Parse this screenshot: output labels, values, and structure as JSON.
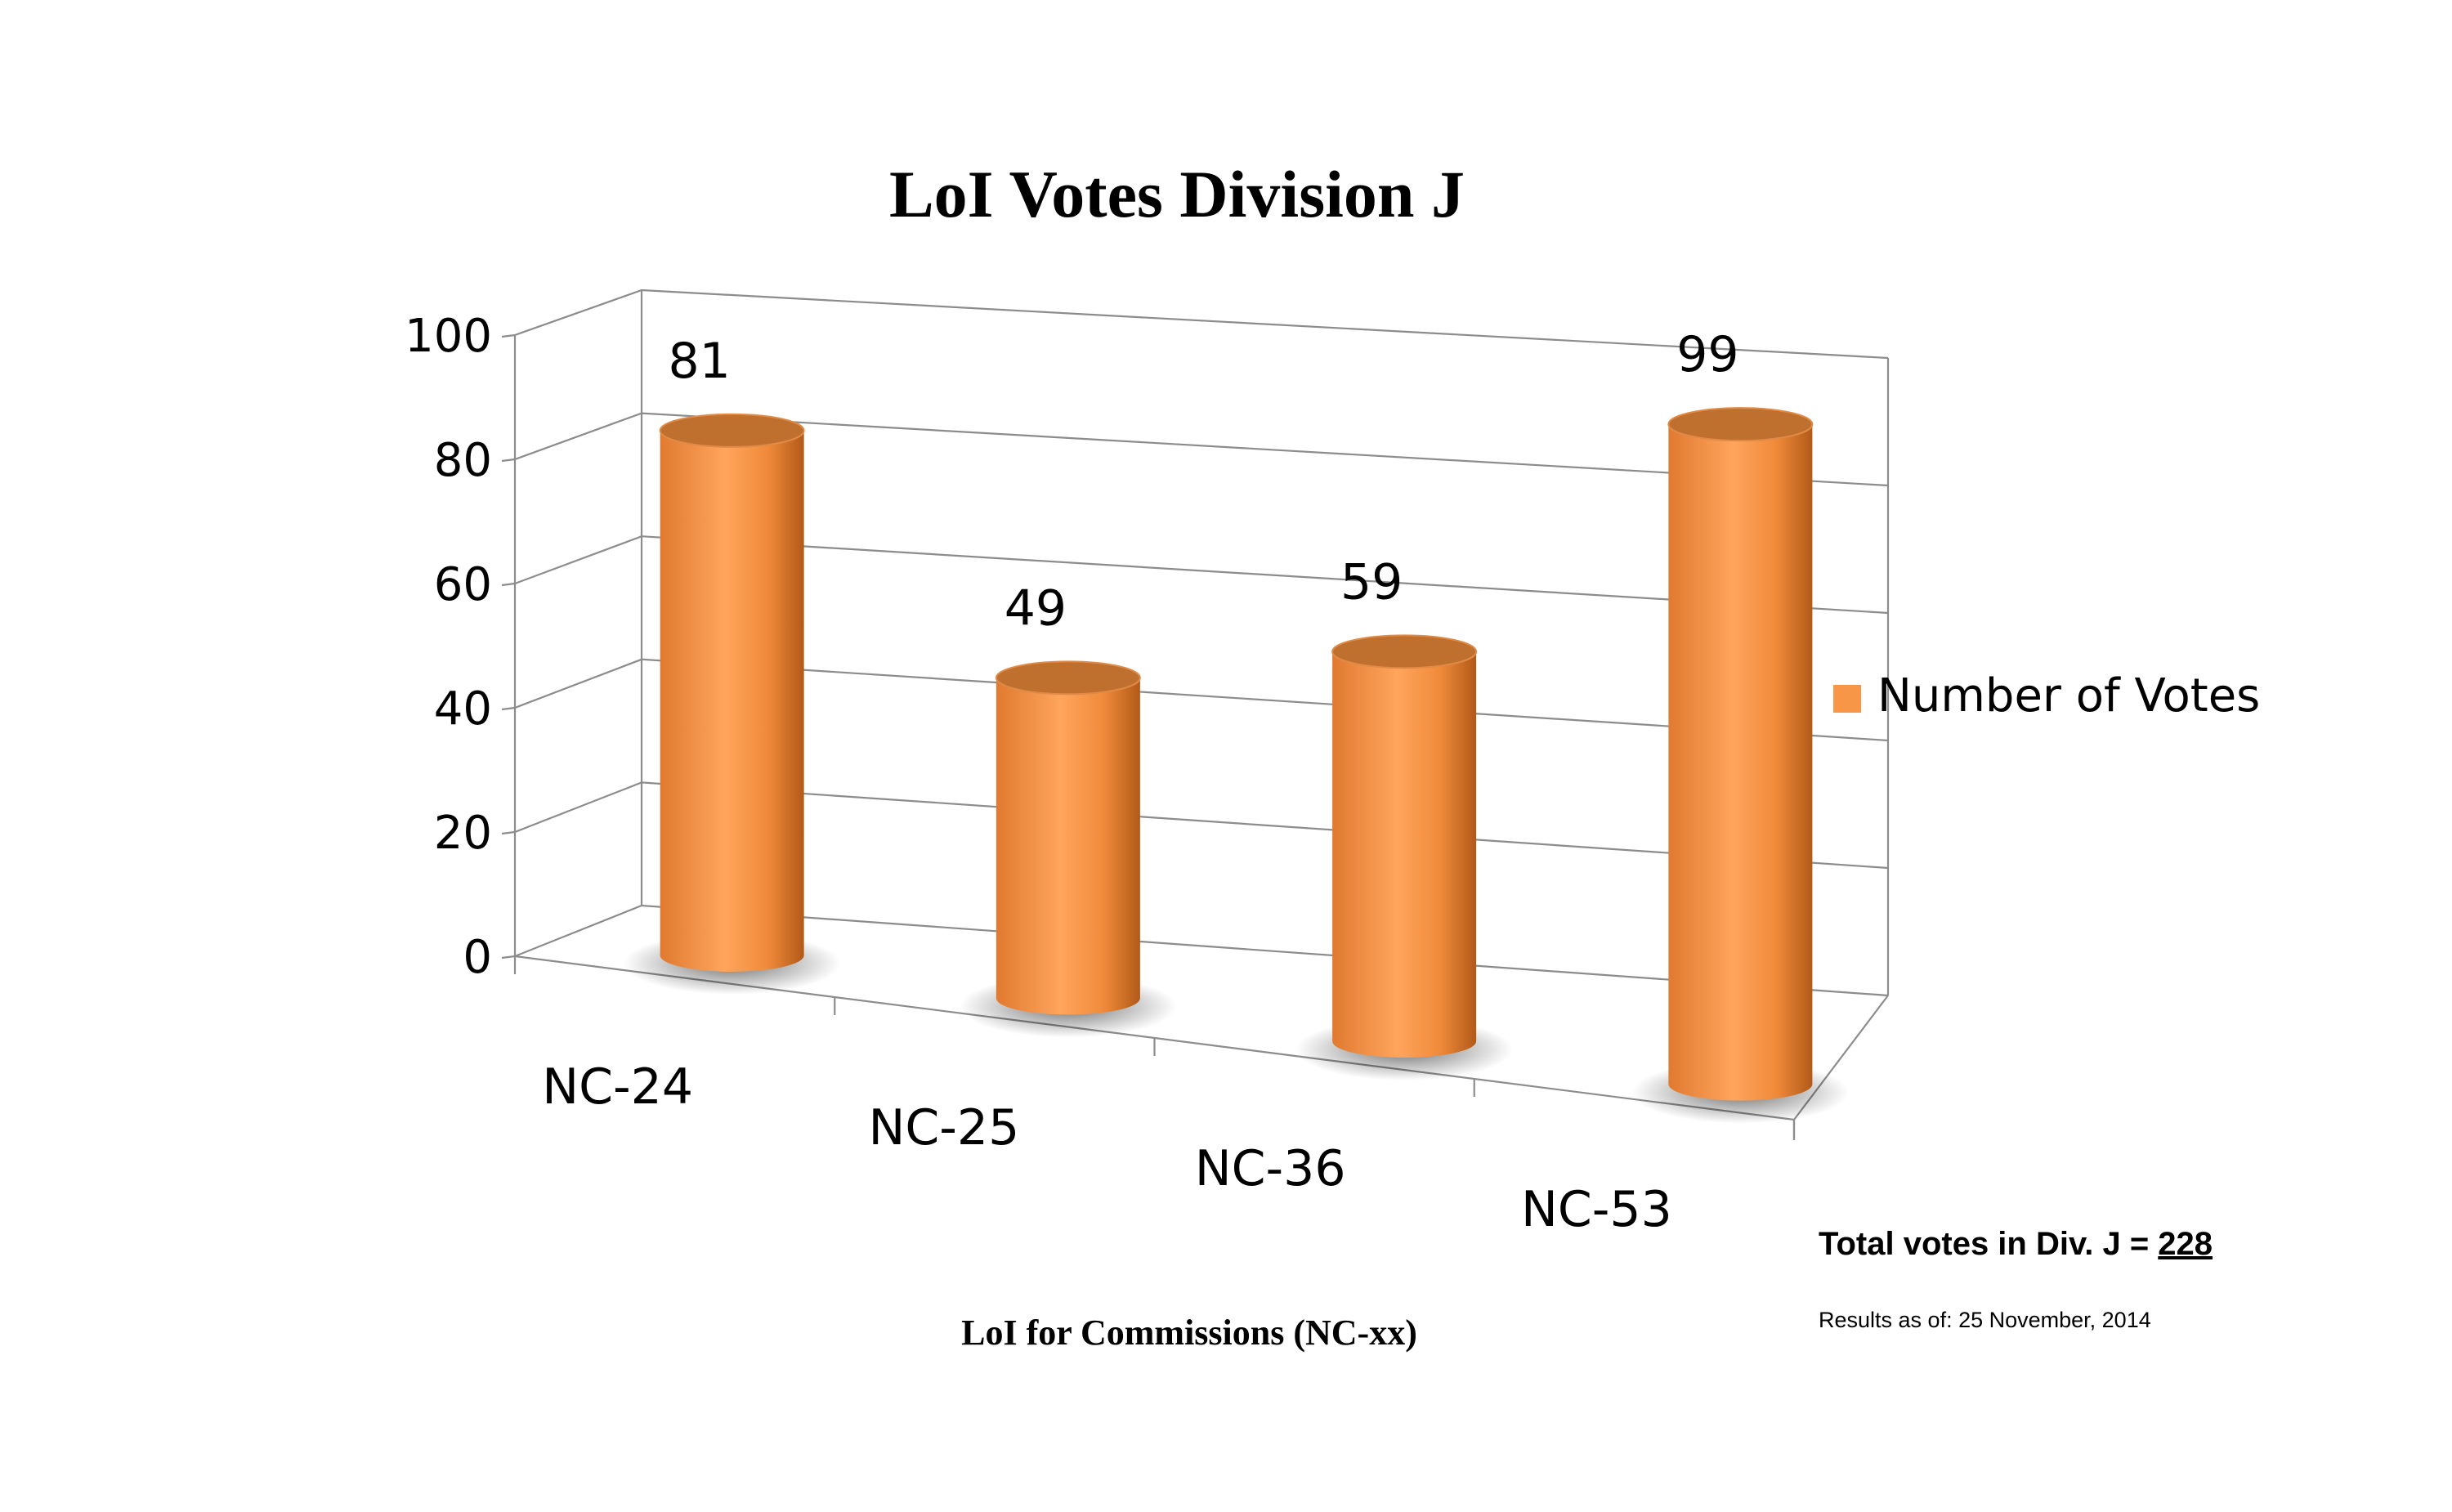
{
  "chart_data": {
    "type": "bar",
    "style": "3d-cylinder",
    "title": "LoI Votes Division J",
    "xlabel": "LoI for Commissions (NC-xx)",
    "ylabel": "",
    "categories": [
      "NC-24",
      "NC-25",
      "NC-36",
      "NC-53"
    ],
    "series": [
      {
        "name": "Number of Votes",
        "values": [
          81,
          49,
          59,
          99
        ]
      }
    ],
    "ylim": [
      0,
      100
    ],
    "yticks": [
      "0",
      "20",
      "40",
      "60",
      "80",
      "100"
    ],
    "data_labels": [
      "81",
      "49",
      "59",
      "99"
    ],
    "grid": true,
    "legend_position": "right",
    "colors": {
      "bar": "#f79646",
      "bar_light": "#ffb070",
      "bar_dark": "#b5601c",
      "bar_top": "#c0702e",
      "axis": "#8c8c8c"
    }
  },
  "notes": {
    "total_label": "Total votes in Div. J = ",
    "total_value": "228",
    "results_date": "Results as of: 25 November, 2014"
  }
}
